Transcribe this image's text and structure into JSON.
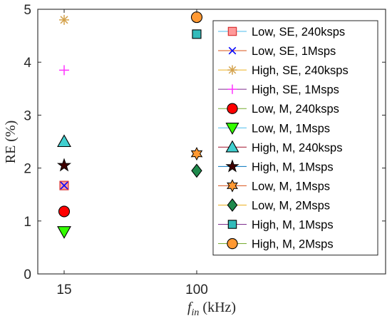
{
  "chart_data": {
    "type": "scatter",
    "x_categories": [
      "15",
      "100"
    ],
    "ylim": [
      0,
      5
    ],
    "yticks": [
      0,
      1,
      2,
      3,
      4,
      5
    ],
    "xlabel": {
      "base": "f",
      "sub": "in",
      "unit": "(kHz)"
    },
    "ylabel": "RE (%)",
    "grid": false,
    "legend_position": "right",
    "series": [
      {
        "name": "Low, SE, 240ksps",
        "marker": "square",
        "color": "#d62728",
        "face": "#ff9a9a",
        "line": "#4dbeee",
        "x": "15",
        "y": 1.67
      },
      {
        "name": "Low, SE, 1Msps",
        "marker": "x",
        "color": "#0000ff",
        "face": "none",
        "line": "#d95319",
        "x": "15",
        "y": 1.67
      },
      {
        "name": "High, SE, 240ksps",
        "marker": "asterisk",
        "color": "#d4a24c",
        "face": "none",
        "line": "#edb120",
        "x": "15",
        "y": 4.8
      },
      {
        "name": "High, SE, 1Msps",
        "marker": "plus",
        "color": "#ff33ff",
        "face": "none",
        "line": "#7e2f8e",
        "x": "15",
        "y": 3.85
      },
      {
        "name": "Low, M, 240ksps",
        "marker": "circle",
        "color": "#000000",
        "face": "#ff0000",
        "line": "#77ac30",
        "x": "15",
        "y": 1.18
      },
      {
        "name": "Low, M, 1Msps",
        "marker": "triangle-down",
        "color": "#000000",
        "face": "#33ff00",
        "line": "#4dbeee",
        "x": "15",
        "y": 0.8
      },
      {
        "name": "High, M, 240ksps",
        "marker": "triangle-up",
        "color": "#000000",
        "face": "#40cfcf",
        "line": "#a2142f",
        "x": "15",
        "y": 2.5
      },
      {
        "name": "High, M, 1Msps",
        "marker": "pentagram",
        "color": "#000000",
        "face": "#400000",
        "line": "#0072bd",
        "x": "15",
        "y": 2.05
      },
      {
        "name": "Low, M, 1Msps",
        "marker": "hexagram",
        "color": "#000000",
        "face": "#ff9933",
        "line": "#d95319",
        "x": "100",
        "y": 2.27
      },
      {
        "name": "Low, M, 2Msps",
        "marker": "diamond",
        "color": "#000000",
        "face": "#1f8a4c",
        "line": "#edb120",
        "x": "100",
        "y": 1.95
      },
      {
        "name": "High, M, 1Msps",
        "marker": "square",
        "color": "#000000",
        "face": "#33bbbb",
        "line": "#7e2f8e",
        "x": "100",
        "y": 4.53
      },
      {
        "name": "High, M, 2Msps",
        "marker": "circle",
        "color": "#000000",
        "face": "#ff9933",
        "line": "#77ac30",
        "x": "100",
        "y": 4.85
      }
    ]
  }
}
